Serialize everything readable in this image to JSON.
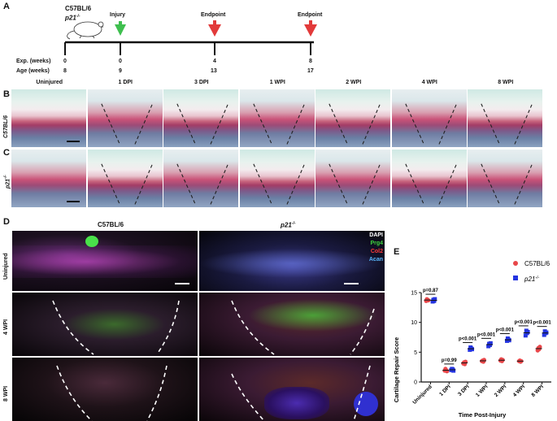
{
  "panelA": {
    "label": "A",
    "strain": "C57BL/6",
    "strain2": "p21",
    "strain2_sup": "-/-",
    "events": [
      "Injury",
      "Endpoint",
      "Endpoint"
    ],
    "exp_label": "Exp.  (weeks)",
    "age_label": "Age (weeks)",
    "exp_values": [
      "0",
      "0",
      "4",
      "8"
    ],
    "age_values": [
      "8",
      "9",
      "13",
      "17"
    ]
  },
  "panelB": {
    "label": "B",
    "row_label": "C57BL/6"
  },
  "panelC": {
    "label": "C",
    "row_label": "p21",
    "row_label_sup": "-/-"
  },
  "histo_columns": [
    "Uninjured",
    "1 DPI",
    "3 DPI",
    "1 WPI",
    "2 WPI",
    "4 WPI",
    "8 WPI"
  ],
  "panelD": {
    "label": "D",
    "col1": "C57BL/6",
    "col2": "p21",
    "col2_sup": "-/-",
    "rows": [
      "Uninjured",
      "4 WPI",
      "8 WPI"
    ],
    "stains": [
      "DAPI",
      "Prg4",
      "Col2",
      "Acan"
    ],
    "stain_colors": [
      "#ffffff",
      "#3fd23f",
      "#ff3b3b",
      "#59b8ff"
    ]
  },
  "panelE": {
    "label": "E"
  },
  "chart_data": {
    "type": "scatter",
    "title": "",
    "xlabel": "Time Post-Injury",
    "ylabel": "Cartilage Repair Score",
    "ylim": [
      0,
      15
    ],
    "yticks": [
      0,
      5,
      10,
      15
    ],
    "categories": [
      "Uninjured",
      "1 DPI",
      "3 DPI",
      "1 WPI",
      "2 WPI",
      "4 WPI",
      "8 WPI"
    ],
    "series": [
      {
        "name": "C57BL/6",
        "marker": "circle",
        "color": "#e8474a",
        "values": [
          [
            13.6,
            13.9,
            13.8,
            13.7
          ],
          [
            1.9,
            2.2,
            2.0,
            1.8
          ],
          [
            3.1,
            3.3,
            3.0,
            3.4
          ],
          [
            3.5,
            3.6,
            3.4,
            3.7
          ],
          [
            3.6,
            3.8,
            3.5,
            3.7
          ],
          [
            3.5,
            3.6,
            3.4,
            3.5
          ],
          [
            5.3,
            5.7,
            5.5,
            5.9
          ]
        ]
      },
      {
        "name": "p21",
        "name_sup": "-/-",
        "marker": "square",
        "color": "#2434e0",
        "values": [
          [
            13.5,
            13.8,
            13.6,
            13.9
          ],
          [
            2.0,
            2.2,
            2.1,
            1.9
          ],
          [
            5.4,
            5.8,
            5.6,
            5.5
          ],
          [
            6.0,
            6.4,
            6.2,
            6.5
          ],
          [
            6.9,
            7.3,
            7.1,
            7.0
          ],
          [
            7.8,
            8.6,
            8.2,
            8.4
          ],
          [
            7.9,
            8.5,
            8.2,
            8.3
          ]
        ]
      }
    ],
    "annotations": [
      "p=0.87",
      "p=0.99",
      "p<0.001",
      "p<0.001",
      "p<0.001",
      "p<0.001",
      "p<0.001"
    ],
    "legend": "top-right"
  }
}
